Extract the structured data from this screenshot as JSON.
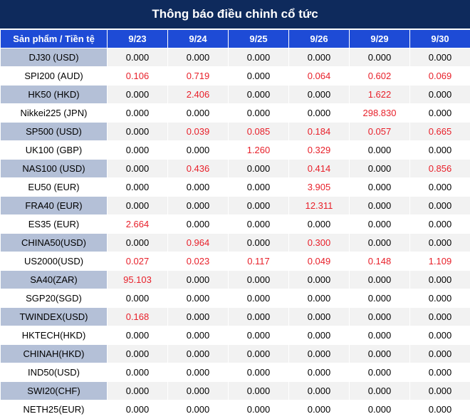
{
  "title": "Thông báo điều chỉnh cổ tức",
  "header": {
    "product_label": "Sản phẩm / Tiền tệ",
    "dates": [
      "9/23",
      "9/24",
      "9/25",
      "9/26",
      "9/29",
      "9/30"
    ]
  },
  "colors": {
    "title_bg": "#0e2a5c",
    "header_bg": "#1e4bd6",
    "nonzero_text": "#e8202a",
    "label_band": "#b4c0d7"
  },
  "rows": [
    {
      "product": "DJ30 (USD)",
      "values": [
        "0.000",
        "0.000",
        "0.000",
        "0.000",
        "0.000",
        "0.000"
      ]
    },
    {
      "product": "SPI200 (AUD)",
      "values": [
        "0.106",
        "0.719",
        "0.000",
        "0.064",
        "0.602",
        "0.069"
      ]
    },
    {
      "product": "HK50 (HKD)",
      "values": [
        "0.000",
        "2.406",
        "0.000",
        "0.000",
        "1.622",
        "0.000"
      ]
    },
    {
      "product": "Nikkei225 (JPN)",
      "values": [
        "0.000",
        "0.000",
        "0.000",
        "0.000",
        "298.830",
        "0.000"
      ]
    },
    {
      "product": "SP500 (USD)",
      "values": [
        "0.000",
        "0.039",
        "0.085",
        "0.184",
        "0.057",
        "0.665"
      ]
    },
    {
      "product": "UK100 (GBP)",
      "values": [
        "0.000",
        "0.000",
        "1.260",
        "0.329",
        "0.000",
        "0.000"
      ]
    },
    {
      "product": "NAS100 (USD)",
      "values": [
        "0.000",
        "0.436",
        "0.000",
        "0.414",
        "0.000",
        "0.856"
      ]
    },
    {
      "product": "EU50 (EUR)",
      "values": [
        "0.000",
        "0.000",
        "0.000",
        "3.905",
        "0.000",
        "0.000"
      ]
    },
    {
      "product": "FRA40 (EUR)",
      "values": [
        "0.000",
        "0.000",
        "0.000",
        "12.311",
        "0.000",
        "0.000"
      ]
    },
    {
      "product": "ES35 (EUR)",
      "values": [
        "2.664",
        "0.000",
        "0.000",
        "0.000",
        "0.000",
        "0.000"
      ]
    },
    {
      "product": "CHINA50(USD)",
      "values": [
        "0.000",
        "0.964",
        "0.000",
        "0.300",
        "0.000",
        "0.000"
      ]
    },
    {
      "product": "US2000(USD)",
      "values": [
        "0.027",
        "0.023",
        "0.117",
        "0.049",
        "0.148",
        "1.109"
      ]
    },
    {
      "product": "SA40(ZAR)",
      "values": [
        "95.103",
        "0.000",
        "0.000",
        "0.000",
        "0.000",
        "0.000"
      ]
    },
    {
      "product": "SGP20(SGD)",
      "values": [
        "0.000",
        "0.000",
        "0.000",
        "0.000",
        "0.000",
        "0.000"
      ]
    },
    {
      "product": "TWINDEX(USD)",
      "values": [
        "0.168",
        "0.000",
        "0.000",
        "0.000",
        "0.000",
        "0.000"
      ]
    },
    {
      "product": "HKTECH(HKD)",
      "values": [
        "0.000",
        "0.000",
        "0.000",
        "0.000",
        "0.000",
        "0.000"
      ]
    },
    {
      "product": "CHINAH(HKD)",
      "values": [
        "0.000",
        "0.000",
        "0.000",
        "0.000",
        "0.000",
        "0.000"
      ]
    },
    {
      "product": "IND50(USD)",
      "values": [
        "0.000",
        "0.000",
        "0.000",
        "0.000",
        "0.000",
        "0.000"
      ]
    },
    {
      "product": "SWI20(CHF)",
      "values": [
        "0.000",
        "0.000",
        "0.000",
        "0.000",
        "0.000",
        "0.000"
      ]
    },
    {
      "product": "NETH25(EUR)",
      "values": [
        "0.000",
        "0.000",
        "0.000",
        "0.000",
        "0.000",
        "0.000"
      ]
    }
  ]
}
